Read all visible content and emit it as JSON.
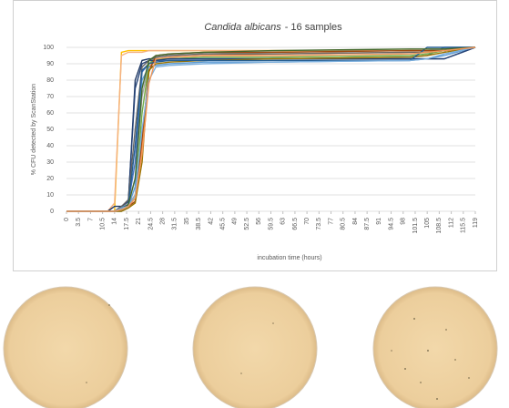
{
  "chart_data": {
    "type": "line",
    "title": {
      "species": "Candida albicans",
      "text": "- 16 samples"
    },
    "y_label": "% CFU detected by ScanStation",
    "x_label": "incubation time (hours)",
    "x": [
      0,
      12,
      14,
      16,
      18,
      20,
      22,
      24,
      26,
      30,
      40,
      60,
      100,
      105,
      110,
      119
    ],
    "xlim": [
      0,
      119
    ],
    "xticks": [
      0,
      3.5,
      7,
      10.5,
      14,
      17.5,
      21,
      24.5,
      28,
      31.5,
      35,
      38.5,
      42,
      45.5,
      49,
      52.5,
      56,
      59.5,
      63,
      66.5,
      70,
      73.5,
      77,
      80.5,
      84,
      87.5,
      91,
      94.5,
      98,
      101.5,
      105,
      108.5,
      112,
      115.5,
      119
    ],
    "ylim": [
      0,
      100
    ],
    "yticks": [
      0,
      10,
      20,
      30,
      40,
      50,
      60,
      70,
      80,
      90,
      100
    ],
    "grid": true,
    "series": [
      {
        "color": "#ffc000",
        "values": [
          0,
          0,
          0,
          97,
          98,
          98,
          98,
          98,
          98,
          98,
          98,
          98,
          98,
          98,
          98,
          100
        ]
      },
      {
        "color": "#f4b183",
        "values": [
          0,
          0,
          5,
          95,
          97,
          97,
          97,
          98,
          98,
          98,
          98,
          98,
          98,
          98,
          98,
          100
        ]
      },
      {
        "color": "#1f3864",
        "values": [
          0,
          0,
          3,
          3,
          5,
          80,
          92,
          93,
          93,
          93,
          93,
          93,
          93,
          93,
          93,
          100
        ]
      },
      {
        "color": "#4472c4",
        "values": [
          0,
          0,
          0,
          3,
          5,
          30,
          85,
          90,
          92,
          92,
          92,
          93,
          94,
          95,
          100,
          100
        ]
      },
      {
        "color": "#ed7d31",
        "values": [
          0,
          0,
          0,
          2,
          4,
          10,
          40,
          88,
          92,
          94,
          95,
          96,
          97,
          97,
          99,
          100
        ]
      },
      {
        "color": "#a5a5a5",
        "values": [
          0,
          0,
          0,
          2,
          5,
          20,
          70,
          90,
          94,
          95,
          96,
          97,
          98,
          98,
          99,
          100
        ]
      },
      {
        "color": "#70ad47",
        "values": [
          0,
          0,
          0,
          2,
          4,
          8,
          60,
          90,
          93,
          93,
          94,
          94,
          95,
          96,
          98,
          100
        ]
      },
      {
        "color": "#5b9bd5",
        "values": [
          0,
          0,
          0,
          0,
          3,
          15,
          80,
          88,
          89,
          90,
          91,
          91,
          92,
          93,
          95,
          100
        ]
      },
      {
        "color": "#264478",
        "values": [
          0,
          0,
          0,
          3,
          6,
          75,
          90,
          92,
          92,
          93,
          93,
          93,
          93,
          93,
          93,
          100
        ]
      },
      {
        "color": "#9e480e",
        "values": [
          0,
          0,
          0,
          2,
          3,
          6,
          45,
          85,
          95,
          96,
          97,
          97,
          98,
          98,
          98,
          100
        ]
      },
      {
        "color": "#636363",
        "values": [
          0,
          0,
          0,
          3,
          7,
          50,
          88,
          92,
          94,
          95,
          96,
          96,
          97,
          97,
          98,
          100
        ]
      },
      {
        "color": "#997300",
        "values": [
          0,
          0,
          0,
          0,
          2,
          5,
          30,
          86,
          90,
          91,
          92,
          93,
          94,
          95,
          97,
          100
        ]
      },
      {
        "color": "#255e91",
        "values": [
          0,
          0,
          0,
          2,
          4,
          40,
          86,
          90,
          91,
          92,
          92,
          92,
          92,
          100,
          100,
          100
        ]
      },
      {
        "color": "#43682b",
        "values": [
          0,
          0,
          0,
          1,
          4,
          20,
          75,
          92,
          95,
          96,
          97,
          98,
          99,
          99,
          99,
          100
        ]
      },
      {
        "color": "#7cafdd",
        "values": [
          0,
          0,
          0,
          2,
          3,
          10,
          50,
          80,
          88,
          89,
          90,
          91,
          92,
          93,
          96,
          100
        ]
      },
      {
        "color": "#f1975a",
        "values": [
          0,
          0,
          0,
          1,
          3,
          8,
          35,
          78,
          93,
          94,
          95,
          95,
          96,
          97,
          98,
          100
        ]
      }
    ]
  }
}
